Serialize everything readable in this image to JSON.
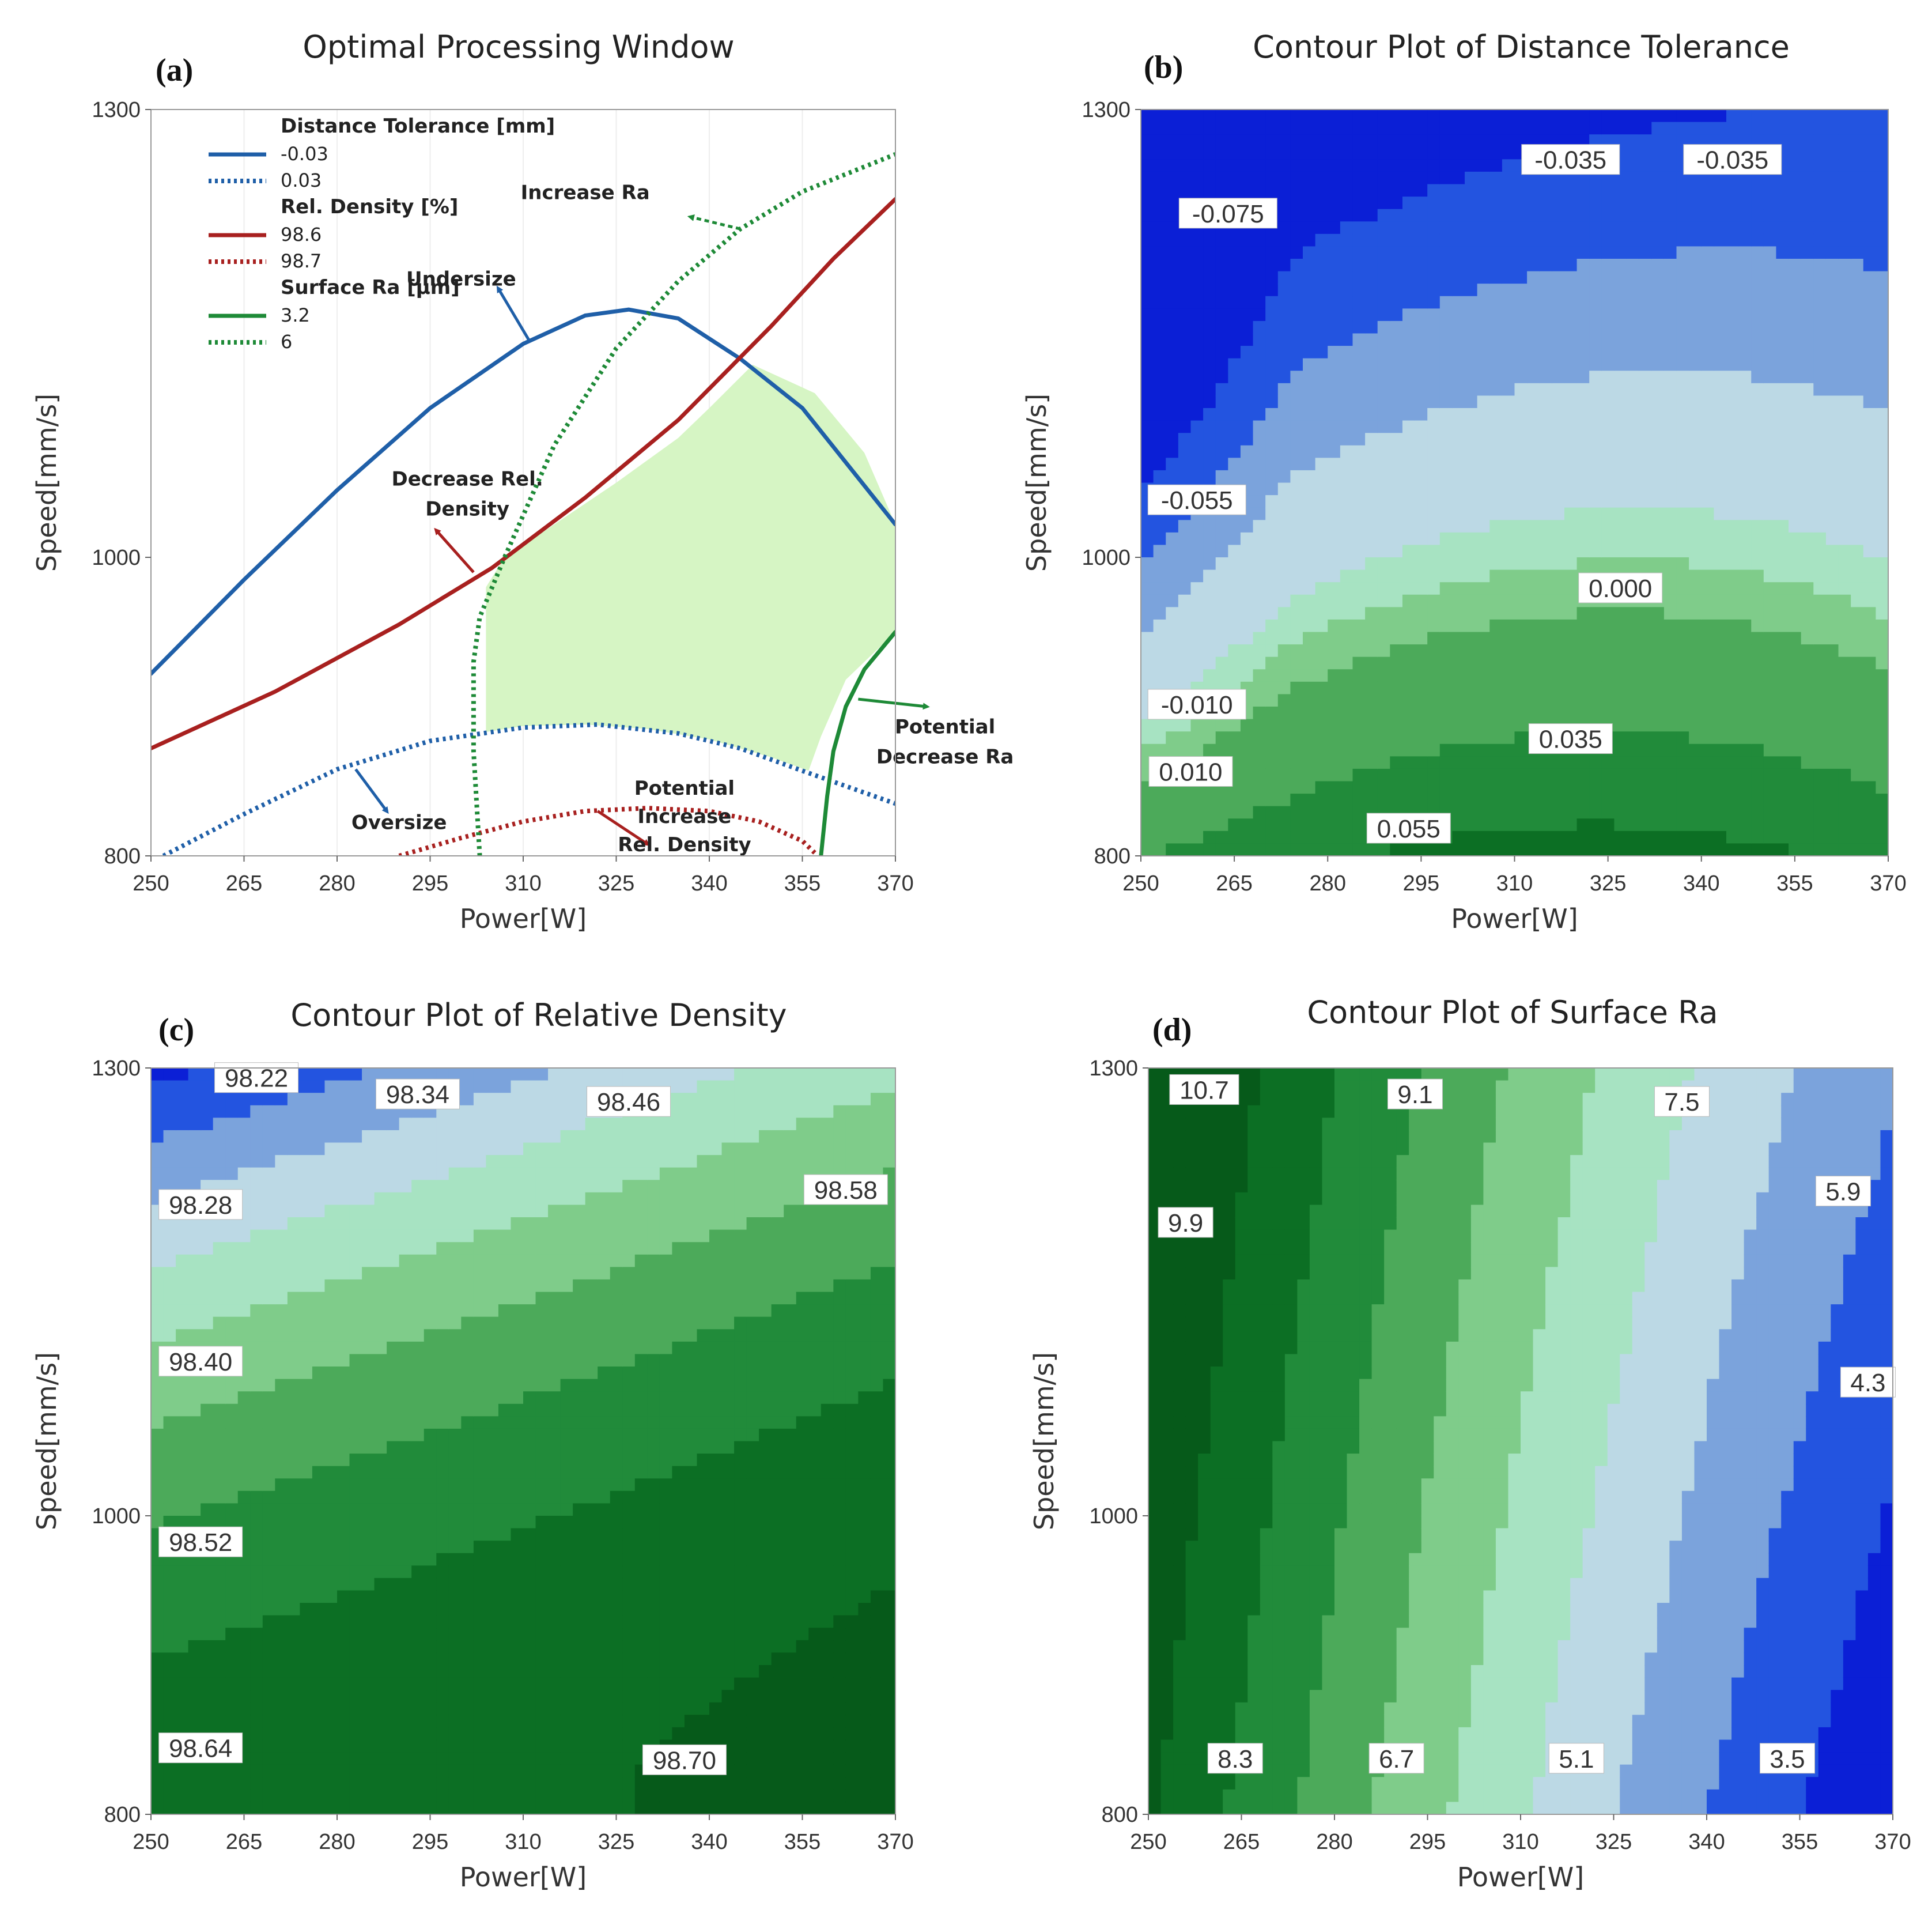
{
  "figure": {
    "panels": [
      {
        "letter": "(a)",
        "title": "Optimal Processing Window"
      },
      {
        "letter": "(b)",
        "title": "Contour Plot of Distance Tolerance"
      },
      {
        "letter": "(c)",
        "title": "Contour Plot of Relative Density"
      },
      {
        "letter": "(d)",
        "title": "Contour Plot of Surface Ra"
      }
    ]
  },
  "chart_data": [
    {
      "type": "line",
      "title": "Optimal Processing Window",
      "xlabel": "Power[W]",
      "ylabel": "Speed[mm/s]",
      "xlim": [
        250,
        370
      ],
      "ylim": [
        800,
        1300
      ],
      "x_ticks": [
        250,
        265,
        280,
        295,
        310,
        325,
        340,
        355,
        370
      ],
      "y_ticks": [
        800,
        1000,
        1300
      ],
      "legend": {
        "groups": [
          {
            "heading": "Distance Tolerance [mm]",
            "entries": [
              {
                "label": "-0.03",
                "style": "solid",
                "color": "#1f5fa8"
              },
              {
                "label": "0.03",
                "style": "dotted",
                "color": "#1f5fa8"
              }
            ]
          },
          {
            "heading": "Rel. Density [%]",
            "entries": [
              {
                "label": "98.6",
                "style": "solid",
                "color": "#a8201f"
              },
              {
                "label": "98.7",
                "style": "dotted",
                "color": "#a8201f"
              }
            ]
          },
          {
            "heading": "Surface Ra [μm]",
            "entries": [
              {
                "label": "3.2",
                "style": "solid",
                "color": "#1e8a37"
              },
              {
                "label": "6",
                "style": "dotted",
                "color": "#1e8a37"
              }
            ]
          }
        ],
        "placement": "top-left"
      },
      "series": [
        {
          "name": "Distance Tolerance -0.03",
          "style": "solid",
          "color": "#1f5fa8",
          "x": [
            250,
            265,
            280,
            295,
            310,
            320,
            327,
            335,
            345,
            355,
            370
          ],
          "y": [
            922,
            985,
            1045,
            1100,
            1143,
            1162,
            1166,
            1160,
            1133,
            1100,
            1022
          ]
        },
        {
          "name": "Distance Tolerance 0.03",
          "style": "dotted",
          "color": "#1f5fa8",
          "x": [
            252,
            265,
            280,
            295,
            310,
            322,
            335,
            345,
            355,
            370
          ],
          "y": [
            800,
            828,
            858,
            877,
            886,
            888,
            882,
            872,
            857,
            835
          ]
        },
        {
          "name": "Rel. Density 98.6",
          "style": "solid",
          "color": "#a8201f",
          "x": [
            250,
            270,
            290,
            305,
            320,
            335,
            350,
            360,
            370
          ],
          "y": [
            872,
            910,
            955,
            993,
            1040,
            1092,
            1155,
            1200,
            1240
          ]
        },
        {
          "name": "Rel. Density 98.7",
          "style": "dotted",
          "color": "#a8201f",
          "x": [
            290,
            300,
            310,
            320,
            330,
            340,
            348,
            355,
            357
          ],
          "y": [
            800,
            812,
            823,
            830,
            832,
            830,
            823,
            810,
            802
          ]
        },
        {
          "name": "Surface Ra 3.2",
          "style": "solid",
          "color": "#1e8a37",
          "x": [
            358,
            359,
            360,
            362,
            365,
            370
          ],
          "y": [
            800,
            840,
            870,
            900,
            925,
            950
          ]
        },
        {
          "name": "Surface Ra 6",
          "style": "dotted",
          "color": "#1e8a37",
          "x": [
            303,
            302,
            302,
            303,
            307,
            315,
            325,
            335,
            345,
            355,
            370
          ],
          "y": [
            800,
            870,
            930,
            960,
            1000,
            1075,
            1140,
            1185,
            1220,
            1245,
            1270
          ]
        }
      ],
      "feasible_region": {
        "color": "#d6f5c4",
        "x": [
          307,
          315,
          325,
          335,
          340,
          347,
          357,
          365,
          370,
          370,
          362,
          358,
          356,
          350,
          340,
          330,
          320,
          310,
          304,
          304,
          307
        ],
        "y": [
          1000,
          1022,
          1050,
          1080,
          1100,
          1129,
          1110,
          1070,
          1022,
          950,
          918,
          880,
          857,
          866,
          878,
          885,
          888,
          887,
          883,
          980,
          1000
        ]
      },
      "annotations": [
        {
          "text": "Increase Ra",
          "x": 320,
          "y": 1240,
          "arrow_from": [
            345,
            1220
          ],
          "arrow_to": [
            337,
            1228
          ],
          "color": "#1e8a37"
        },
        {
          "text": "Undersize",
          "x": 300,
          "y": 1182,
          "arrow_from": [
            311,
            1145
          ],
          "arrow_to": [
            306,
            1180
          ],
          "color": "#1f5fa8"
        },
        {
          "text": "Decrease Rel.",
          "x": 301,
          "y": 1048,
          "arrow_from": [
            302,
            990
          ],
          "arrow_to": [
            296,
            1018
          ],
          "color": "#a8201f"
        },
        {
          "text": "Density",
          "x": 301,
          "y": 1028
        },
        {
          "text": "Potential",
          "x": 378,
          "y": 882,
          "arrow_from": [
            364,
            905
          ],
          "arrow_to": [
            375,
            900
          ],
          "color": "#1e8a37"
        },
        {
          "text": "Decrease Ra",
          "x": 378,
          "y": 862
        },
        {
          "text": "Oversize",
          "x": 290,
          "y": 818,
          "arrow_from": [
            283,
            858
          ],
          "arrow_to": [
            288,
            830
          ],
          "color": "#1f5fa8"
        },
        {
          "text": "Potential",
          "x": 336,
          "y": 841
        },
        {
          "text": "Increase",
          "x": 336,
          "y": 822,
          "arrow_from": [
            322,
            830
          ],
          "arrow_to": [
            330,
            808
          ],
          "color": "#a8201f"
        },
        {
          "text": "Rel. Density",
          "x": 336,
          "y": 803
        }
      ]
    },
    {
      "type": "contour",
      "title": "Contour Plot of Distance Tolerance",
      "xlabel": "Power[W]",
      "ylabel": "Speed[mm/s]",
      "xlim": [
        250,
        370
      ],
      "ylim": [
        800,
        1300
      ],
      "x_ticks": [
        250,
        265,
        280,
        295,
        310,
        325,
        340,
        355,
        370
      ],
      "y_ticks": [
        800,
        1000,
        1300
      ],
      "levels": [
        -0.075,
        -0.055,
        -0.035,
        -0.01,
        0.0,
        0.01,
        0.035,
        0.055
      ],
      "level_colors": [
        "#0b1fd6",
        "#2354e0",
        "#7ba3dc",
        "#bcd9e5",
        "#a7e3c2",
        "#7fcc8a",
        "#4caa5a",
        "#218b3a",
        "#0c6f24"
      ],
      "contour_labels": [
        {
          "text": "-0.075",
          "x": 264,
          "y": 1229
        },
        {
          "text": "-0.055",
          "x": 259,
          "y": 1037
        },
        {
          "text": "-0.035",
          "x": 319,
          "y": 1265
        },
        {
          "text": "-0.035",
          "x": 345,
          "y": 1265
        },
        {
          "text": "-0.010",
          "x": 259,
          "y": 900
        },
        {
          "text": "0.000",
          "x": 327,
          "y": 978
        },
        {
          "text": "0.010",
          "x": 258,
          "y": 855
        },
        {
          "text": "0.035",
          "x": 319,
          "y": 877
        },
        {
          "text": "0.055",
          "x": 293,
          "y": 817
        }
      ]
    },
    {
      "type": "contour",
      "title": "Contour Plot of Relative Density",
      "xlabel": "Power[W]",
      "ylabel": "Speed[mm/s]",
      "xlim": [
        250,
        370
      ],
      "ylim": [
        800,
        1300
      ],
      "x_ticks": [
        250,
        265,
        280,
        295,
        310,
        325,
        340,
        355,
        370
      ],
      "y_ticks": [
        800,
        1000,
        1300
      ],
      "levels": [
        98.22,
        98.28,
        98.34,
        98.4,
        98.46,
        98.52,
        98.58,
        98.64,
        98.7
      ],
      "level_colors": [
        "#0b1fd6",
        "#2354e0",
        "#7ba3dc",
        "#bcd9e5",
        "#a7e3c2",
        "#7fcc8a",
        "#4caa5a",
        "#218b3a",
        "#0c6f24",
        "#065a1a"
      ],
      "contour_labels": [
        {
          "text": "98.22",
          "x": 267,
          "y": 1292
        },
        {
          "text": "98.34",
          "x": 293,
          "y": 1281
        },
        {
          "text": "98.46",
          "x": 327,
          "y": 1276
        },
        {
          "text": "98.28",
          "x": 258,
          "y": 1207
        },
        {
          "text": "98.58",
          "x": 362,
          "y": 1217
        },
        {
          "text": "98.40",
          "x": 258,
          "y": 1102
        },
        {
          "text": "98.52",
          "x": 258,
          "y": 981
        },
        {
          "text": "98.64",
          "x": 258,
          "y": 843
        },
        {
          "text": "98.70",
          "x": 336,
          "y": 835
        }
      ]
    },
    {
      "type": "contour",
      "title": "Contour Plot of Surface Ra",
      "xlabel": "Power[W]",
      "ylabel": "Speed[mm/s]",
      "xlim": [
        250,
        370
      ],
      "ylim": [
        800,
        1300
      ],
      "x_ticks": [
        250,
        265,
        280,
        295,
        310,
        325,
        340,
        355,
        370
      ],
      "y_ticks": [
        800,
        1000,
        1300
      ],
      "levels": [
        10.7,
        9.9,
        9.1,
        8.3,
        7.5,
        6.7,
        5.9,
        5.1,
        4.3,
        3.5
      ],
      "level_colors": [
        "#065a1a",
        "#0c6f24",
        "#218b3a",
        "#4caa5a",
        "#7fcc8a",
        "#a7e3c2",
        "#bcd9e5",
        "#7ba3dc",
        "#2354e0",
        "#0b1fd6",
        "#0a14a8"
      ],
      "contour_labels": [
        {
          "text": "10.7",
          "x": 259,
          "y": 1284
        },
        {
          "text": "9.1",
          "x": 293,
          "y": 1281
        },
        {
          "text": "7.5",
          "x": 336,
          "y": 1276
        },
        {
          "text": "9.9",
          "x": 256,
          "y": 1195
        },
        {
          "text": "5.9",
          "x": 362,
          "y": 1216
        },
        {
          "text": "4.3",
          "x": 366,
          "y": 1088
        },
        {
          "text": "8.3",
          "x": 264,
          "y": 836
        },
        {
          "text": "6.7",
          "x": 290,
          "y": 836
        },
        {
          "text": "5.1",
          "x": 319,
          "y": 836
        },
        {
          "text": "3.5",
          "x": 353,
          "y": 836
        }
      ]
    }
  ]
}
